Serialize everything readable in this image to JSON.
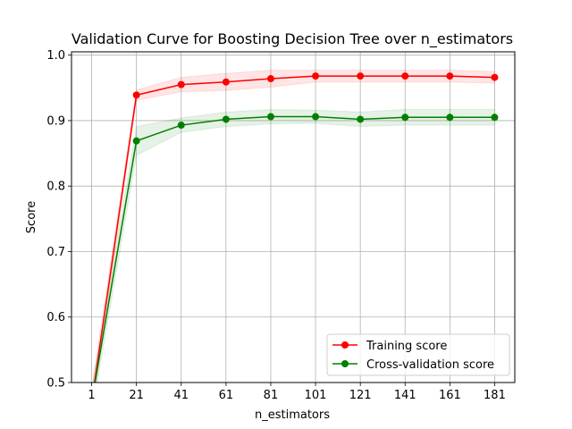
{
  "chart_data": {
    "type": "line",
    "title": "Validation Curve for Boosting Decision Tree over n_estimators",
    "xlabel": "n_estimators",
    "ylabel": "Score",
    "x": [
      1,
      21,
      41,
      61,
      81,
      101,
      121,
      141,
      161,
      181
    ],
    "xlim": [
      -8,
      190
    ],
    "ylim": [
      0.5,
      1.005
    ],
    "x_ticks": [
      "1",
      "21",
      "41",
      "61",
      "81",
      "101",
      "121",
      "141",
      "161",
      "181"
    ],
    "y_ticks": [
      "0.5",
      "0.6",
      "0.7",
      "0.8",
      "0.9",
      "1.0"
    ],
    "y_tick_values": [
      0.5,
      0.6,
      0.7,
      0.8,
      0.9,
      1.0
    ],
    "grid": true,
    "legend_position": "bottom-right",
    "series": [
      {
        "name": "Training score",
        "color": "#ff0000",
        "values": [
          0.47,
          0.939,
          0.955,
          0.959,
          0.964,
          0.968,
          0.968,
          0.968,
          0.968,
          0.966
        ],
        "std": [
          0.02,
          0.008,
          0.011,
          0.013,
          0.013,
          0.009,
          0.009,
          0.009,
          0.009,
          0.009
        ]
      },
      {
        "name": "Cross-validation score",
        "color": "#008000",
        "values": [
          0.47,
          0.869,
          0.893,
          0.902,
          0.906,
          0.906,
          0.902,
          0.905,
          0.905,
          0.905
        ],
        "std": [
          0.02,
          0.022,
          0.011,
          0.011,
          0.011,
          0.01,
          0.011,
          0.012,
          0.012,
          0.012
        ]
      }
    ]
  }
}
